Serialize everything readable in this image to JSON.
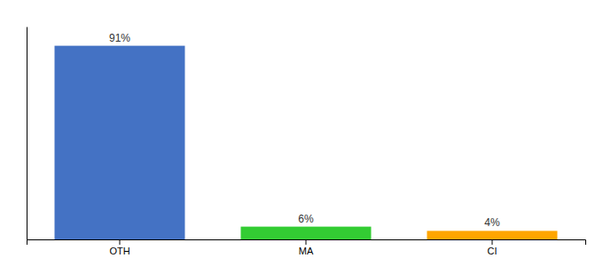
{
  "chart_data": {
    "type": "bar",
    "categories": [
      "OTH",
      "MA",
      "CI"
    ],
    "values": [
      91,
      6,
      4
    ],
    "value_labels": [
      "91%",
      "6%",
      "4%"
    ],
    "colors": [
      "#4472C4",
      "#33CC33",
      "#FFA500"
    ],
    "ylim": [
      0,
      100
    ],
    "data_labels": true,
    "tick_labels": "x"
  }
}
